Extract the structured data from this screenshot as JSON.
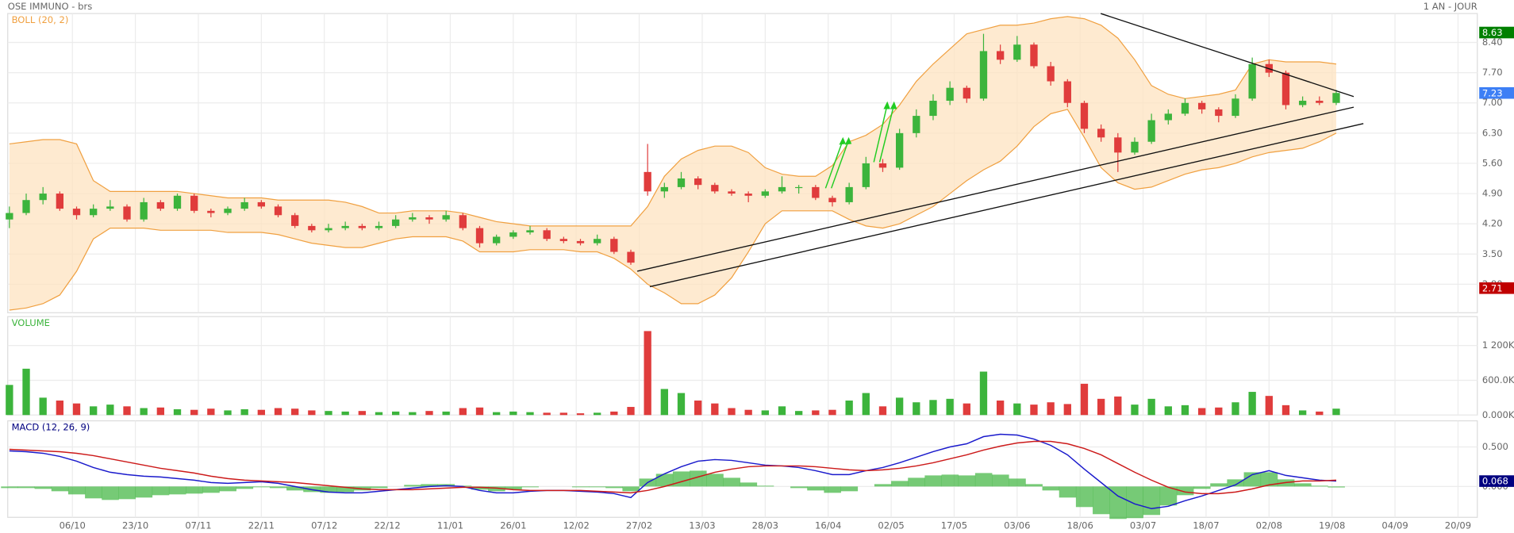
{
  "chart_data": [
    {
      "type": "candlestick",
      "title": "OSE IMMUNO - brs",
      "subtitle": "1 AN - JOUR",
      "xlim": [
        -0.1,
        87.4
      ],
      "ylim": [
        2.14,
        9.07
      ],
      "grid": true,
      "yticks": [
        {
          "value": 2.8,
          "label": "2.80"
        },
        {
          "value": 3.5,
          "label": "3.50"
        },
        {
          "value": 4.2,
          "label": "4.20"
        },
        {
          "value": 4.9,
          "label": "4.90"
        },
        {
          "value": 5.6,
          "label": "5.60"
        },
        {
          "value": 6.3,
          "label": "6.30"
        },
        {
          "value": 7.0,
          "label": "7.00"
        },
        {
          "value": 7.7,
          "label": "7.70"
        },
        {
          "value": 8.4,
          "label": "8.40"
        }
      ],
      "up_color": "#3cb43c",
      "down_color": "#e03c3c",
      "ohlc": [
        [
          4.3,
          4.6,
          4.1,
          4.45
        ],
        [
          4.45,
          4.9,
          4.4,
          4.75
        ],
        [
          4.75,
          5.05,
          4.65,
          4.9
        ],
        [
          4.9,
          4.95,
          4.5,
          4.55
        ],
        [
          4.55,
          4.6,
          4.3,
          4.4
        ],
        [
          4.4,
          4.65,
          4.35,
          4.55
        ],
        [
          4.55,
          4.75,
          4.5,
          4.6
        ],
        [
          4.6,
          4.65,
          4.25,
          4.3
        ],
        [
          4.3,
          4.8,
          4.25,
          4.7
        ],
        [
          4.7,
          4.75,
          4.5,
          4.55
        ],
        [
          4.55,
          4.9,
          4.5,
          4.85
        ],
        [
          4.85,
          4.9,
          4.45,
          4.5
        ],
        [
          4.5,
          4.55,
          4.35,
          4.45
        ],
        [
          4.45,
          4.6,
          4.4,
          4.55
        ],
        [
          4.55,
          4.8,
          4.5,
          4.7
        ],
        [
          4.7,
          4.75,
          4.55,
          4.6
        ],
        [
          4.6,
          4.65,
          4.35,
          4.4
        ],
        [
          4.4,
          4.45,
          4.1,
          4.15
        ],
        [
          4.15,
          4.2,
          4.0,
          4.05
        ],
        [
          4.05,
          4.2,
          4.0,
          4.1
        ],
        [
          4.1,
          4.25,
          4.05,
          4.15
        ],
        [
          4.15,
          4.2,
          4.05,
          4.1
        ],
        [
          4.1,
          4.25,
          4.05,
          4.15
        ],
        [
          4.15,
          4.4,
          4.1,
          4.3
        ],
        [
          4.3,
          4.45,
          4.25,
          4.35
        ],
        [
          4.35,
          4.4,
          4.2,
          4.3
        ],
        [
          4.3,
          4.5,
          4.25,
          4.4
        ],
        [
          4.4,
          4.45,
          4.05,
          4.1
        ],
        [
          4.1,
          4.15,
          3.65,
          3.75
        ],
        [
          3.75,
          3.95,
          3.7,
          3.9
        ],
        [
          3.9,
          4.05,
          3.85,
          4.0
        ],
        [
          4.0,
          4.15,
          3.95,
          4.05
        ],
        [
          4.05,
          4.1,
          3.8,
          3.85
        ],
        [
          3.85,
          3.9,
          3.75,
          3.8
        ],
        [
          3.8,
          3.85,
          3.7,
          3.75
        ],
        [
          3.75,
          3.95,
          3.7,
          3.85
        ],
        [
          3.85,
          3.9,
          3.5,
          3.55
        ],
        [
          3.55,
          3.6,
          3.25,
          3.3
        ],
        [
          5.4,
          6.05,
          4.85,
          4.95
        ],
        [
          4.95,
          5.15,
          4.8,
          5.05
        ],
        [
          5.05,
          5.4,
          5.0,
          5.25
        ],
        [
          5.25,
          5.3,
          5.0,
          5.1
        ],
        [
          5.1,
          5.15,
          4.9,
          4.95
        ],
        [
          4.95,
          5.0,
          4.85,
          4.9
        ],
        [
          4.9,
          4.95,
          4.7,
          4.85
        ],
        [
          4.85,
          5.0,
          4.8,
          4.95
        ],
        [
          4.95,
          5.3,
          4.9,
          5.05
        ],
        [
          5.05,
          5.1,
          4.9,
          5.05
        ],
        [
          5.05,
          5.1,
          4.75,
          4.8
        ],
        [
          4.8,
          4.85,
          4.6,
          4.7
        ],
        [
          4.7,
          5.15,
          4.65,
          5.05
        ],
        [
          5.05,
          5.75,
          5.0,
          5.6
        ],
        [
          5.6,
          5.7,
          5.4,
          5.5
        ],
        [
          5.5,
          6.4,
          5.45,
          6.3
        ],
        [
          6.3,
          6.85,
          6.2,
          6.7
        ],
        [
          6.7,
          7.2,
          6.6,
          7.05
        ],
        [
          7.05,
          7.5,
          6.95,
          7.35
        ],
        [
          7.35,
          7.4,
          7.0,
          7.1
        ],
        [
          7.1,
          8.6,
          7.05,
          8.2
        ],
        [
          8.2,
          8.35,
          7.9,
          8.0
        ],
        [
          8.0,
          8.55,
          7.95,
          8.35
        ],
        [
          8.35,
          8.4,
          7.8,
          7.85
        ],
        [
          7.85,
          7.95,
          7.4,
          7.5
        ],
        [
          7.5,
          7.55,
          6.9,
          7.0
        ],
        [
          7.0,
          7.05,
          6.3,
          6.4
        ],
        [
          6.4,
          6.5,
          6.1,
          6.2
        ],
        [
          6.2,
          6.3,
          5.4,
          5.85
        ],
        [
          5.85,
          6.2,
          5.8,
          6.1
        ],
        [
          6.1,
          6.75,
          6.05,
          6.6
        ],
        [
          6.6,
          6.85,
          6.5,
          6.75
        ],
        [
          6.75,
          7.1,
          6.7,
          7.0
        ],
        [
          7.0,
          7.05,
          6.75,
          6.85
        ],
        [
          6.85,
          6.9,
          6.55,
          6.7
        ],
        [
          6.7,
          7.2,
          6.65,
          7.1
        ],
        [
          7.1,
          8.05,
          7.05,
          7.9
        ],
        [
          7.9,
          8.0,
          7.6,
          7.7
        ],
        [
          7.7,
          7.75,
          6.85,
          6.95
        ],
        [
          6.95,
          7.15,
          6.9,
          7.05
        ],
        [
          7.05,
          7.15,
          6.95,
          7.0
        ],
        [
          7.0,
          7.3,
          6.95,
          7.23
        ]
      ],
      "bollinger": {
        "name": "BOLL (20, 2)",
        "color": "#f0a040",
        "fill": "#fde3c0",
        "upper": [
          6.05,
          6.1,
          6.15,
          6.15,
          6.05,
          5.2,
          4.95,
          4.95,
          4.95,
          4.95,
          4.95,
          4.9,
          4.85,
          4.8,
          4.8,
          4.8,
          4.75,
          4.75,
          4.75,
          4.75,
          4.7,
          4.6,
          4.45,
          4.45,
          4.5,
          4.5,
          4.5,
          4.45,
          4.35,
          4.25,
          4.2,
          4.15,
          4.15,
          4.15,
          4.15,
          4.15,
          4.15,
          4.15,
          4.6,
          5.3,
          5.7,
          5.9,
          6.0,
          6.0,
          5.85,
          5.5,
          5.35,
          5.3,
          5.3,
          5.55,
          6.1,
          6.25,
          6.5,
          6.95,
          7.5,
          7.9,
          8.25,
          8.6,
          8.7,
          8.8,
          8.8,
          8.85,
          8.95,
          9.0,
          8.95,
          8.8,
          8.5,
          8.0,
          7.4,
          7.2,
          7.1,
          7.15,
          7.2,
          7.3,
          7.9,
          8.0,
          7.95,
          7.95,
          7.95,
          7.9
        ],
        "lower": [
          2.2,
          2.25,
          2.35,
          2.55,
          3.1,
          3.85,
          4.1,
          4.1,
          4.1,
          4.05,
          4.05,
          4.05,
          4.05,
          4.0,
          4.0,
          4.0,
          3.95,
          3.85,
          3.75,
          3.7,
          3.65,
          3.65,
          3.75,
          3.85,
          3.9,
          3.9,
          3.9,
          3.8,
          3.55,
          3.55,
          3.55,
          3.6,
          3.6,
          3.6,
          3.55,
          3.55,
          3.4,
          3.15,
          2.8,
          2.6,
          2.35,
          2.35,
          2.55,
          2.95,
          3.55,
          4.2,
          4.5,
          4.5,
          4.5,
          4.5,
          4.3,
          4.15,
          4.1,
          4.2,
          4.4,
          4.6,
          4.9,
          5.2,
          5.45,
          5.65,
          6.0,
          6.45,
          6.75,
          6.85,
          6.2,
          5.5,
          5.15,
          5.0,
          5.05,
          5.2,
          5.35,
          5.45,
          5.5,
          5.6,
          5.75,
          5.85,
          5.9,
          5.95,
          6.1,
          6.3
        ]
      },
      "markers": [
        {
          "value": 8.63,
          "color": "#008000"
        },
        {
          "value": 7.23,
          "color": "#3d7ff5"
        },
        {
          "value": 2.71,
          "color": "#c00000"
        }
      ]
    },
    {
      "type": "bar",
      "title": "VOLUME",
      "title_color": "#3cb43c",
      "xlim": [
        -0.1,
        87.4
      ],
      "ylim": [
        0,
        1700000
      ],
      "grid": true,
      "yticks": [
        {
          "value": 0,
          "label": "0.000K"
        },
        {
          "value": 600000,
          "label": "600.0K"
        },
        {
          "value": 1200000,
          "label": "1 200K"
        }
      ],
      "values": [
        520000,
        800000,
        300000,
        250000,
        200000,
        150000,
        180000,
        150000,
        120000,
        130000,
        100000,
        90000,
        110000,
        80000,
        100000,
        90000,
        120000,
        110000,
        80000,
        70000,
        60000,
        70000,
        50000,
        60000,
        50000,
        70000,
        60000,
        120000,
        130000,
        50000,
        60000,
        50000,
        40000,
        40000,
        30000,
        40000,
        60000,
        140000,
        1450000,
        450000,
        380000,
        250000,
        200000,
        120000,
        90000,
        80000,
        150000,
        70000,
        80000,
        90000,
        250000,
        380000,
        150000,
        300000,
        220000,
        260000,
        280000,
        200000,
        750000,
        250000,
        200000,
        180000,
        220000,
        190000,
        540000,
        280000,
        320000,
        180000,
        280000,
        150000,
        170000,
        120000,
        130000,
        220000,
        400000,
        330000,
        170000,
        80000,
        60000,
        110000
      ]
    },
    {
      "type": "line",
      "title": "MACD (12, 26, 9)",
      "title_color": "#000080",
      "xlim": [
        -0.1,
        87.4
      ],
      "ylim": [
        -0.39,
        0.83
      ],
      "grid": true,
      "yticks": [
        {
          "value": 0,
          "label": "0.000"
        },
        {
          "value": 0.5,
          "label": "0.500"
        }
      ],
      "xticks": [
        {
          "value": 3.75,
          "label": "06/10"
        },
        {
          "value": 7.5,
          "label": "23/10"
        },
        {
          "value": 11.25,
          "label": "07/11"
        },
        {
          "value": 15,
          "label": "22/11"
        },
        {
          "value": 18.75,
          "label": "07/12"
        },
        {
          "value": 22.5,
          "label": "22/12"
        },
        {
          "value": 26.25,
          "label": "11/01"
        },
        {
          "value": 30,
          "label": "26/01"
        },
        {
          "value": 33.75,
          "label": "12/02"
        },
        {
          "value": 37.5,
          "label": "27/02"
        },
        {
          "value": 41.25,
          "label": "13/03"
        },
        {
          "value": 45,
          "label": "28/03"
        },
        {
          "value": 48.75,
          "label": "16/04"
        },
        {
          "value": 52.5,
          "label": "02/05"
        },
        {
          "value": 56.25,
          "label": "17/05"
        },
        {
          "value": 60,
          "label": "03/06"
        },
        {
          "value": 63.75,
          "label": "18/06"
        },
        {
          "value": 67.5,
          "label": "03/07"
        },
        {
          "value": 71.25,
          "label": "18/07"
        },
        {
          "value": 75,
          "label": "02/08"
        },
        {
          "value": 78.75,
          "label": "19/08"
        },
        {
          "value": 82.5,
          "label": "04/09"
        },
        {
          "value": 86.25,
          "label": "20/09"
        }
      ],
      "series": [
        {
          "color": "#1a1acc",
          "values": [
            0.45,
            0.44,
            0.42,
            0.38,
            0.32,
            0.24,
            0.18,
            0.15,
            0.13,
            0.12,
            0.1,
            0.08,
            0.05,
            0.04,
            0.05,
            0.06,
            0.04,
            0.0,
            -0.04,
            -0.07,
            -0.08,
            -0.08,
            -0.06,
            -0.04,
            -0.02,
            0.0,
            0.01,
            0.0,
            -0.05,
            -0.08,
            -0.08,
            -0.06,
            -0.05,
            -0.05,
            -0.06,
            -0.07,
            -0.09,
            -0.14,
            0.05,
            0.16,
            0.25,
            0.32,
            0.34,
            0.33,
            0.3,
            0.27,
            0.26,
            0.24,
            0.2,
            0.15,
            0.15,
            0.2,
            0.24,
            0.3,
            0.37,
            0.44,
            0.5,
            0.54,
            0.63,
            0.66,
            0.65,
            0.6,
            0.52,
            0.4,
            0.22,
            0.05,
            -0.12,
            -0.22,
            -0.28,
            -0.25,
            -0.18,
            -0.12,
            -0.05,
            0.02,
            0.15,
            0.2,
            0.14,
            0.11,
            0.08,
            0.068
          ]
        },
        {
          "color": "#cc1a1a",
          "values": [
            0.47,
            0.46,
            0.45,
            0.44,
            0.42,
            0.39,
            0.35,
            0.31,
            0.27,
            0.23,
            0.2,
            0.17,
            0.13,
            0.1,
            0.08,
            0.07,
            0.06,
            0.05,
            0.03,
            0.01,
            -0.01,
            -0.03,
            -0.04,
            -0.04,
            -0.04,
            -0.03,
            -0.02,
            -0.01,
            -0.01,
            -0.02,
            -0.04,
            -0.05,
            -0.05,
            -0.05,
            -0.05,
            -0.06,
            -0.07,
            -0.08,
            -0.05,
            0.0,
            0.06,
            0.12,
            0.18,
            0.22,
            0.25,
            0.26,
            0.26,
            0.26,
            0.25,
            0.23,
            0.21,
            0.2,
            0.21,
            0.23,
            0.26,
            0.3,
            0.35,
            0.4,
            0.46,
            0.51,
            0.55,
            0.57,
            0.57,
            0.54,
            0.48,
            0.4,
            0.29,
            0.18,
            0.08,
            -0.01,
            -0.07,
            -0.09,
            -0.09,
            -0.07,
            -0.03,
            0.02,
            0.05,
            0.07,
            0.07,
            0.08
          ]
        }
      ],
      "histogram": {
        "color": "#3cb43c",
        "values": [
          -0.02,
          -0.02,
          -0.03,
          -0.06,
          -0.1,
          -0.15,
          -0.17,
          -0.16,
          -0.14,
          -0.11,
          -0.1,
          -0.09,
          -0.08,
          -0.06,
          -0.03,
          -0.01,
          -0.02,
          -0.05,
          -0.07,
          -0.08,
          -0.07,
          -0.05,
          -0.02,
          0,
          0.02,
          0.03,
          0.03,
          0.01,
          -0.04,
          -0.06,
          -0.04,
          -0.01,
          0,
          0,
          -0.01,
          -0.01,
          -0.02,
          -0.06,
          0.1,
          0.16,
          0.19,
          0.2,
          0.16,
          0.11,
          0.05,
          0.01,
          0,
          -0.02,
          -0.05,
          -0.08,
          -0.06,
          0,
          0.03,
          0.07,
          0.11,
          0.14,
          0.15,
          0.14,
          0.17,
          0.15,
          0.1,
          0.03,
          -0.05,
          -0.14,
          -0.26,
          -0.35,
          -0.41,
          -0.4,
          -0.36,
          -0.24,
          -0.11,
          -0.03,
          0.04,
          0.09,
          0.18,
          0.18,
          0.09,
          0.04,
          0.01,
          -0.012
        ]
      },
      "markers": [
        {
          "value": 0.068,
          "color": "#000080"
        }
      ]
    }
  ]
}
